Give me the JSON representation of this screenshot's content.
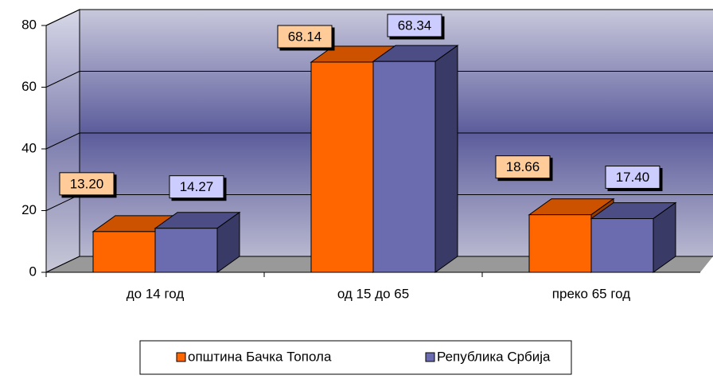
{
  "chart_data": {
    "type": "bar3d",
    "categories": [
      "до 14 год",
      "од 15 до 65",
      "преко 65 год"
    ],
    "series": [
      {
        "name": "општина Бачка Топола",
        "color": "#ff6600",
        "values": [
          13.2,
          68.14,
          18.66
        ],
        "value_labels": [
          "13.20",
          "68.14",
          "18.66"
        ]
      },
      {
        "name": "Република Србија",
        "color": "#6b6bb0",
        "values": [
          14.27,
          68.34,
          17.4
        ],
        "value_labels": [
          "14.27",
          "68.34",
          "17.40"
        ]
      }
    ],
    "ylim": [
      0,
      80
    ],
    "yticks": [
      0,
      20,
      40,
      60,
      80
    ],
    "grid": true,
    "legend": "bottom"
  }
}
